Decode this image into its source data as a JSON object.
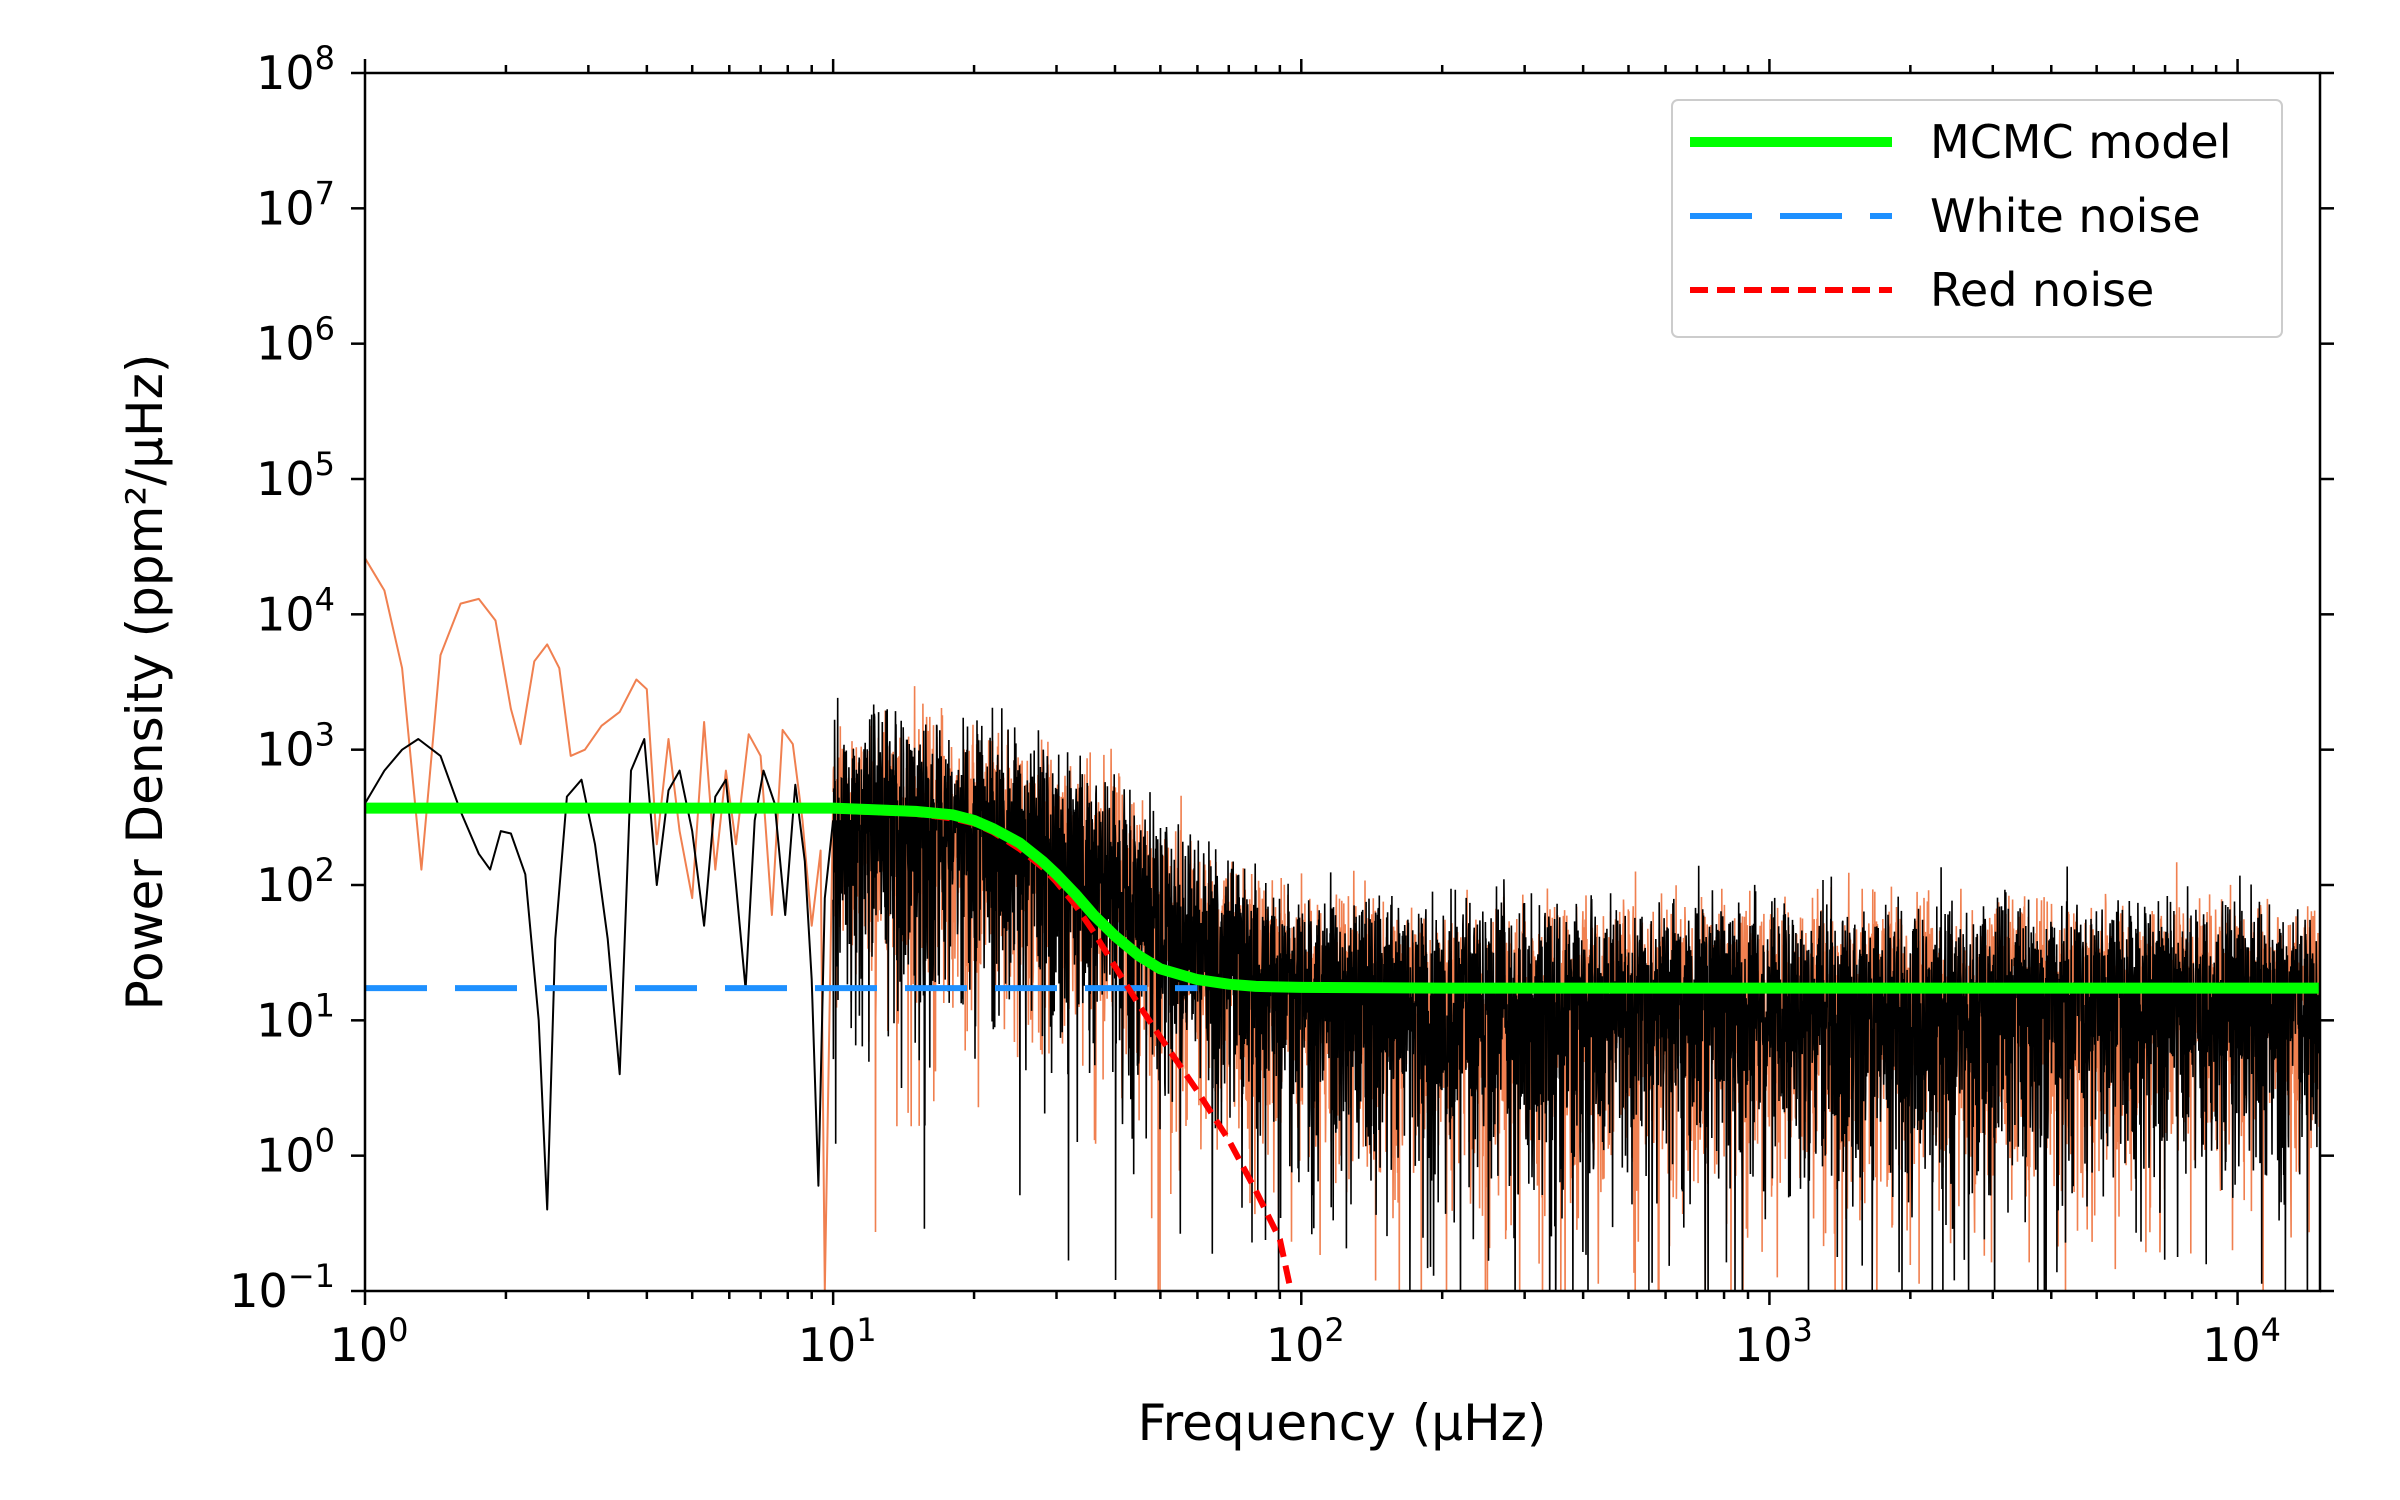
{
  "chart_data": {
    "type": "line",
    "title": "",
    "xlabel": "Frequency (μHz)",
    "ylabel": "Power Density (ppm²/μHz)",
    "x_scale": "log",
    "y_scale": "log",
    "xlim": [
      1,
      15000
    ],
    "ylim": [
      0.1,
      100000000
    ],
    "x_ticks": [
      {
        "value": 1,
        "base": "10",
        "exp": "0"
      },
      {
        "value": 10,
        "base": "10",
        "exp": "1"
      },
      {
        "value": 100,
        "base": "10",
        "exp": "2"
      },
      {
        "value": 1000,
        "base": "10",
        "exp": "3"
      },
      {
        "value": 10000,
        "base": "10",
        "exp": "4"
      }
    ],
    "y_ticks": [
      {
        "value": 0.1,
        "base": "10",
        "exp": "−1"
      },
      {
        "value": 1,
        "base": "10",
        "exp": "0"
      },
      {
        "value": 10,
        "base": "10",
        "exp": "1"
      },
      {
        "value": 100,
        "base": "10",
        "exp": "2"
      },
      {
        "value": 1000,
        "base": "10",
        "exp": "3"
      },
      {
        "value": 10000,
        "base": "10",
        "exp": "4"
      },
      {
        "value": 100000,
        "base": "10",
        "exp": "5"
      },
      {
        "value": 1000000,
        "base": "10",
        "exp": "6"
      },
      {
        "value": 10000000,
        "base": "10",
        "exp": "7"
      },
      {
        "value": 100000000,
        "base": "10",
        "exp": "8"
      }
    ],
    "grid": false,
    "legend_position": "top-right",
    "legend": [
      {
        "label": "MCMC model",
        "color": "#00ff00",
        "style": "solid"
      },
      {
        "label": "White noise",
        "color": "#1e90ff",
        "style": "dashed"
      },
      {
        "label": "Red noise",
        "color": "#ff0000",
        "style": "dotted"
      }
    ],
    "series": [
      {
        "name": "MCMC model",
        "color": "#00ff00",
        "style": "solid",
        "x": [
          1,
          5,
          10,
          15,
          18,
          20,
          22,
          25,
          28,
          30,
          33,
          36,
          40,
          45,
          50,
          60,
          70,
          80,
          100,
          200,
          1000,
          15000
        ],
        "y": [
          370,
          370,
          370,
          350,
          330,
          300,
          260,
          205,
          150,
          120,
          85,
          60,
          42,
          30,
          24,
          20,
          18.5,
          17.8,
          17.5,
          17.3,
          17.3,
          17.3
        ]
      },
      {
        "name": "White noise",
        "color": "#1e90ff",
        "style": "dashed",
        "x": [
          1,
          60
        ],
        "y": [
          17.3,
          17.3
        ]
      },
      {
        "name": "Red noise",
        "color": "#ff0000",
        "style": "dotted",
        "x": [
          1,
          10,
          15,
          18,
          20,
          22,
          25,
          28,
          30,
          33,
          36,
          40,
          45,
          50,
          60,
          70,
          80,
          90,
          95
        ],
        "y": [
          360,
          355,
          335,
          310,
          285,
          245,
          185,
          135,
          105,
          70,
          45,
          25,
          13,
          7.5,
          3.0,
          1.3,
          0.55,
          0.24,
          0.1
        ]
      },
      {
        "name": "",
        "color": "#f08050",
        "style": "thin",
        "x": [
          1.0,
          1.1,
          1.2,
          1.32,
          1.45,
          1.6,
          1.75,
          1.9,
          2.05,
          2.15,
          2.3,
          2.45,
          2.6,
          2.75,
          2.95,
          3.2,
          3.5,
          3.8,
          4.0,
          4.2,
          4.45,
          4.7,
          5.0,
          5.3,
          5.6,
          5.9,
          6.2,
          6.6,
          7.0,
          7.4,
          7.8,
          8.2,
          8.6,
          9.0,
          9.4,
          9.6,
          10.0
        ],
        "y": [
          26000,
          15000,
          4000,
          130,
          5000,
          12000,
          13000,
          9000,
          2000,
          1100,
          4500,
          6000,
          4000,
          900,
          1000,
          1500,
          1900,
          3300,
          2800,
          200,
          1200,
          250,
          80,
          1600,
          130,
          700,
          200,
          1300,
          900,
          60,
          1400,
          1100,
          300,
          50,
          180,
          0.1,
          400
        ]
      },
      {
        "name": "",
        "color": "#000000",
        "style": "thin",
        "x": [
          1.0,
          1.1,
          1.2,
          1.3,
          1.45,
          1.6,
          1.75,
          1.85,
          1.95,
          2.05,
          2.2,
          2.35,
          2.45,
          2.55,
          2.7,
          2.9,
          3.1,
          3.3,
          3.5,
          3.7,
          3.95,
          4.2,
          4.45,
          4.7,
          5.0,
          5.3,
          5.6,
          5.9,
          6.2,
          6.5,
          6.8,
          7.1,
          7.5,
          7.9,
          8.3,
          8.7,
          9.0,
          9.3,
          9.6,
          10.0
        ],
        "y": [
          400,
          700,
          1000,
          1200,
          900,
          350,
          170,
          130,
          250,
          240,
          120,
          10,
          0.4,
          40,
          450,
          600,
          200,
          40,
          4,
          700,
          1200,
          100,
          500,
          700,
          250,
          50,
          450,
          600,
          100,
          17,
          300,
          700,
          400,
          60,
          550,
          150,
          20,
          0.6,
          80,
          300
        ]
      }
    ]
  }
}
